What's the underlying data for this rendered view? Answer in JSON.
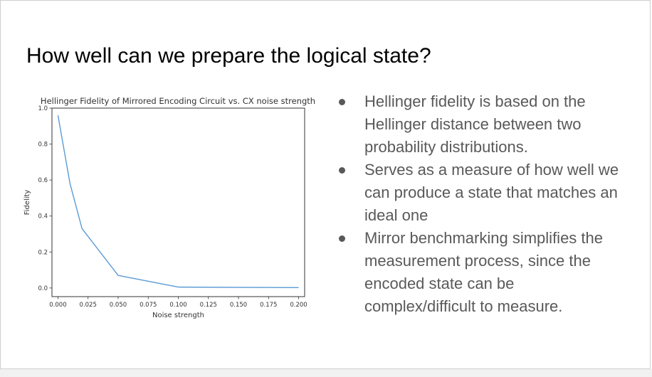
{
  "slide": {
    "title": "How well can we prepare the logical state?",
    "bullets": [
      "Hellinger fidelity is based on the Hellinger distance between two probability distributions.",
      "Serves as a measure of how well we can produce a state that matches an ideal one",
      "Mirror benchmarking simplifies the measurement process, since the encoded state can be complex/difficult to measure."
    ]
  },
  "chart_data": {
    "type": "line",
    "title": "Hellinger Fidelity of Mirrored Encoding Circuit vs. CX noise strength",
    "xlabel": "Noise strength",
    "ylabel": "Fidelity",
    "x": [
      0.0,
      0.01,
      0.02,
      0.05,
      0.1,
      0.2
    ],
    "series": [
      {
        "name": "Fidelity",
        "values": [
          0.96,
          0.58,
          0.33,
          0.07,
          0.005,
          0.002
        ]
      }
    ],
    "xlim": [
      -0.005,
      0.205
    ],
    "ylim": [
      -0.048,
      1.0
    ],
    "xticks": [
      0.0,
      0.025,
      0.05,
      0.075,
      0.1,
      0.125,
      0.15,
      0.175,
      0.2
    ],
    "xtick_labels": [
      "0.000",
      "0.025",
      "0.050",
      "0.075",
      "0.100",
      "0.125",
      "0.150",
      "0.175",
      "0.200"
    ],
    "yticks": [
      0.0,
      0.2,
      0.4,
      0.6,
      0.8,
      1.0
    ],
    "ytick_labels": [
      "0.0",
      "0.2",
      "0.4",
      "0.6",
      "0.8",
      "1.0"
    ],
    "grid": false,
    "line_color": "#5b9bd5"
  }
}
